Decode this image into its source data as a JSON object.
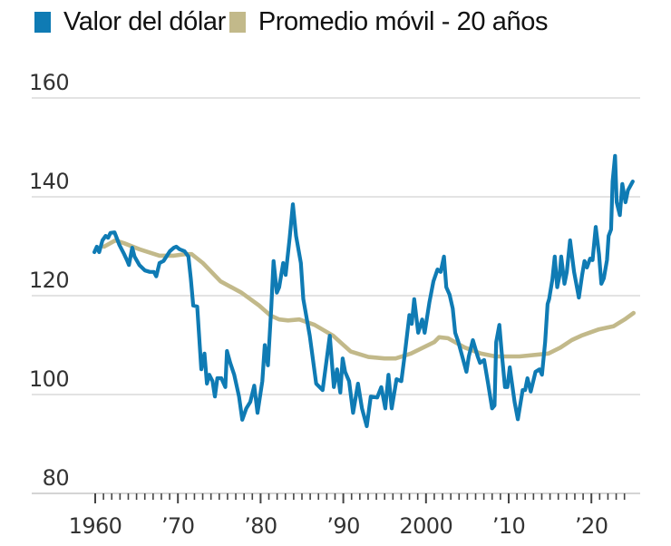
{
  "chart_data": {
    "type": "line",
    "title": "",
    "xlabel": "",
    "ylabel": "",
    "xlim": [
      1960,
      2025
    ],
    "ylim": [
      80,
      160
    ],
    "grid": true,
    "legend_placement": "top-left",
    "y_ticks": [
      {
        "value": 80,
        "label": "80"
      },
      {
        "value": 100,
        "label": "100"
      },
      {
        "value": 120,
        "label": "120"
      },
      {
        "value": 140,
        "label": "140"
      },
      {
        "value": 160,
        "label": "160"
      }
    ],
    "x_ticks": [
      {
        "value": 1960,
        "label": "1960"
      },
      {
        "value": 1970,
        "label": "’70"
      },
      {
        "value": 1980,
        "label": "’80"
      },
      {
        "value": 1990,
        "label": "’90"
      },
      {
        "value": 2000,
        "label": "2000"
      },
      {
        "value": 2010,
        "label": "’10"
      },
      {
        "value": 2020,
        "label": "’20"
      }
    ],
    "series": [
      {
        "name": "Valor del dólar",
        "color": "#0f7bb4",
        "points": [
          [
            1959.9,
            128.8
          ],
          [
            1960.2,
            129.9
          ],
          [
            1960.5,
            128.8
          ],
          [
            1960.9,
            131.2
          ],
          [
            1961.3,
            132.1
          ],
          [
            1961.6,
            131.7
          ],
          [
            1961.9,
            132.7
          ],
          [
            1962.4,
            132.8
          ],
          [
            1962.7,
            131.6
          ],
          [
            1963.0,
            130.3
          ],
          [
            1963.6,
            128.4
          ],
          [
            1964.0,
            127.0
          ],
          [
            1964.2,
            126.2
          ],
          [
            1964.6,
            129.7
          ],
          [
            1964.9,
            127.9
          ],
          [
            1965.5,
            126.2
          ],
          [
            1966.2,
            125.1
          ],
          [
            1966.8,
            124.8
          ],
          [
            1967.3,
            124.8
          ],
          [
            1967.6,
            123.9
          ],
          [
            1968.0,
            126.6
          ],
          [
            1968.5,
            127.0
          ],
          [
            1969.3,
            129.0
          ],
          [
            1969.8,
            129.7
          ],
          [
            1970.1,
            129.9
          ],
          [
            1970.5,
            129.4
          ],
          [
            1971.1,
            129.0
          ],
          [
            1971.6,
            127.9
          ],
          [
            1971.9,
            123.5
          ],
          [
            1972.2,
            118.0
          ],
          [
            1972.7,
            117.8
          ],
          [
            1973.2,
            105.1
          ],
          [
            1973.6,
            108.3
          ],
          [
            1973.9,
            102.2
          ],
          [
            1974.2,
            104.0
          ],
          [
            1974.6,
            102.7
          ],
          [
            1974.9,
            99.6
          ],
          [
            1975.2,
            103.3
          ],
          [
            1975.7,
            103.3
          ],
          [
            1976.2,
            101.5
          ],
          [
            1976.4,
            108.8
          ],
          [
            1976.8,
            106.4
          ],
          [
            1977.3,
            104.0
          ],
          [
            1977.9,
            99.6
          ],
          [
            1978.3,
            94.9
          ],
          [
            1978.8,
            97.2
          ],
          [
            1979.3,
            98.5
          ],
          [
            1979.8,
            101.8
          ],
          [
            1980.2,
            96.3
          ],
          [
            1980.8,
            102.7
          ],
          [
            1981.1,
            110.0
          ],
          [
            1981.5,
            105.9
          ],
          [
            1981.9,
            117.4
          ],
          [
            1982.2,
            127.0
          ],
          [
            1982.6,
            120.6
          ],
          [
            1982.9,
            121.7
          ],
          [
            1983.4,
            126.6
          ],
          [
            1983.7,
            124.2
          ],
          [
            1984.2,
            131.6
          ],
          [
            1984.6,
            138.5
          ],
          [
            1985.0,
            132.1
          ],
          [
            1985.6,
            126.6
          ],
          [
            1985.9,
            119.3
          ],
          [
            1986.7,
            111.9
          ],
          [
            1987.5,
            102.2
          ],
          [
            1988.3,
            100.9
          ],
          [
            1988.8,
            107.0
          ],
          [
            1989.2,
            111.9
          ],
          [
            1989.7,
            101.5
          ],
          [
            1990.1,
            105.1
          ],
          [
            1990.5,
            100.4
          ],
          [
            1990.8,
            107.3
          ],
          [
            1991.1,
            104.6
          ],
          [
            1991.6,
            102.7
          ],
          [
            1992.1,
            96.3
          ],
          [
            1992.7,
            102.2
          ],
          [
            1993.2,
            97.2
          ],
          [
            1993.8,
            93.6
          ],
          [
            1994.3,
            99.6
          ],
          [
            1995.1,
            99.4
          ],
          [
            1995.6,
            101.5
          ],
          [
            1996.1,
            97.2
          ],
          [
            1996.5,
            104.0
          ],
          [
            1996.9,
            97.2
          ],
          [
            1997.5,
            103.1
          ],
          [
            1998.1,
            102.7
          ],
          [
            1998.5,
            107.7
          ],
          [
            1999.1,
            116.1
          ],
          [
            1999.4,
            114.3
          ],
          [
            1999.7,
            119.3
          ],
          [
            2000.2,
            112.5
          ],
          [
            2000.7,
            115.2
          ],
          [
            2001.0,
            112.5
          ],
          [
            2001.6,
            118.7
          ],
          [
            2002.1,
            122.9
          ],
          [
            2002.6,
            125.3
          ],
          [
            2003.0,
            124.8
          ],
          [
            2003.4,
            127.9
          ],
          [
            2003.7,
            121.7
          ],
          [
            2004.1,
            120.2
          ],
          [
            2004.5,
            117.4
          ],
          [
            2004.8,
            112.5
          ],
          [
            2005.2,
            110.6
          ],
          [
            2006.2,
            104.6
          ],
          [
            2006.5,
            107.7
          ],
          [
            2007.0,
            111.0
          ],
          [
            2007.6,
            107.7
          ],
          [
            2007.9,
            106.4
          ],
          [
            2008.4,
            107.0
          ],
          [
            2008.9,
            102.2
          ],
          [
            2009.4,
            97.2
          ],
          [
            2009.7,
            97.8
          ],
          [
            2009.9,
            110.6
          ],
          [
            2010.3,
            114.1
          ],
          [
            2010.6,
            108.3
          ],
          [
            2011.0,
            101.5
          ],
          [
            2011.3,
            101.5
          ],
          [
            2011.6,
            105.5
          ],
          [
            2012.2,
            98.5
          ],
          [
            2012.6,
            95.0
          ],
          [
            2013.2,
            100.9
          ],
          [
            2013.5,
            100.9
          ],
          [
            2013.8,
            103.3
          ],
          [
            2014.2,
            100.6
          ],
          [
            2014.8,
            104.6
          ],
          [
            2015.3,
            105.1
          ],
          [
            2015.6,
            104.0
          ],
          [
            2016.0,
            110.6
          ],
          [
            2016.3,
            118.3
          ],
          [
            2016.5,
            119.3
          ],
          [
            2016.9,
            123.3
          ],
          [
            2017.2,
            127.9
          ],
          [
            2017.5,
            121.7
          ],
          [
            2017.8,
            124.2
          ],
          [
            2018.0,
            127.9
          ],
          [
            2018.4,
            122.4
          ],
          [
            2018.7,
            124.8
          ],
          [
            2019.1,
            131.2
          ],
          [
            2019.6,
            124.8
          ],
          [
            2020.2,
            119.6
          ],
          [
            2020.6,
            124.2
          ],
          [
            2020.9,
            127.0
          ],
          [
            2021.2,
            125.7
          ],
          [
            2021.6,
            127.5
          ],
          [
            2021.9,
            127.2
          ],
          [
            2022.3,
            133.9
          ],
          [
            2022.7,
            128.4
          ],
          [
            2023.0,
            122.4
          ],
          [
            2023.3,
            123.5
          ],
          [
            2023.7,
            127.2
          ],
          [
            2023.9,
            132.1
          ],
          [
            2024.2,
            133.4
          ],
          [
            2024.4,
            143.1
          ],
          [
            2024.7,
            148.3
          ],
          [
            2024.9,
            138.9
          ],
          [
            2025.3,
            136.3
          ],
          [
            2025.6,
            142.6
          ],
          [
            2026.0,
            138.9
          ],
          [
            2026.3,
            141.3
          ],
          [
            2026.9,
            143.1
          ]
        ]
      },
      {
        "name": "Promedio móvil - 20 años",
        "color": "#c2b98a",
        "points": [
          [
            1961.1,
            129.9
          ],
          [
            1962.5,
            131.2
          ],
          [
            1963.6,
            130.6
          ],
          [
            1965.5,
            129.4
          ],
          [
            1968.0,
            128.1
          ],
          [
            1969.8,
            128.1
          ],
          [
            1971.2,
            128.4
          ],
          [
            1972.0,
            128.4
          ],
          [
            1973.4,
            126.6
          ],
          [
            1975.6,
            122.9
          ],
          [
            1978.2,
            120.6
          ],
          [
            1980.4,
            118.0
          ],
          [
            1981.8,
            116.0
          ],
          [
            1982.9,
            115.2
          ],
          [
            1984.0,
            115.0
          ],
          [
            1985.4,
            115.2
          ],
          [
            1987.3,
            114.1
          ],
          [
            1989.6,
            111.9
          ],
          [
            1991.8,
            108.7
          ],
          [
            1994.0,
            107.6
          ],
          [
            1996.0,
            107.3
          ],
          [
            1997.4,
            107.3
          ],
          [
            1999.3,
            108.3
          ],
          [
            2002.2,
            110.6
          ],
          [
            2002.8,
            111.6
          ],
          [
            2003.9,
            111.4
          ],
          [
            2006.0,
            109.5
          ],
          [
            2008.0,
            108.3
          ],
          [
            2009.8,
            107.7
          ],
          [
            2012.8,
            107.7
          ],
          [
            2016.4,
            108.3
          ],
          [
            2017.9,
            109.5
          ],
          [
            2019.3,
            111.0
          ],
          [
            2020.5,
            111.9
          ],
          [
            2022.7,
            113.2
          ],
          [
            2024.5,
            113.8
          ],
          [
            2025.9,
            115.2
          ],
          [
            2027.0,
            116.5
          ]
        ]
      }
    ]
  },
  "legend": {
    "items": [
      {
        "label": "Valor del dólar",
        "color": "#0f7bb4"
      },
      {
        "label": "Promedio móvil - 20 años",
        "color": "#c2b98a"
      }
    ]
  }
}
